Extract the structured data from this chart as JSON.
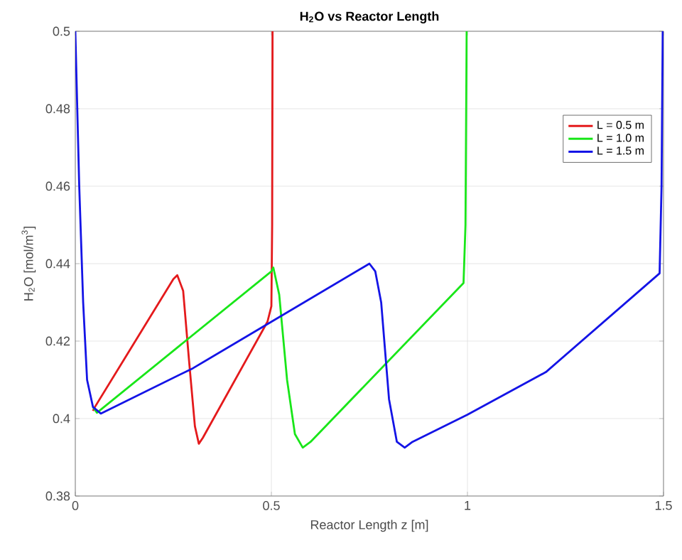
{
  "chart_data": {
    "type": "line",
    "title": "**H$_{2}$O vs Reactor Length**",
    "xlabel": "Reactor Length z [m]",
    "ylabel": "H$_{2}$O [mol/m$^{3}$]",
    "xlim": [
      0,
      1.5
    ],
    "ylim": [
      0.38,
      0.5
    ],
    "xticks": [
      0,
      0.5,
      1,
      1.5
    ],
    "yticks": [
      0.38,
      0.4,
      0.42,
      0.44,
      0.46,
      0.48,
      0.5
    ],
    "grid": true,
    "legend": "top right",
    "marker": "none",
    "line_style": "solid",
    "series": [
      {
        "name": "L = 0.5 m",
        "color": "#e41a1c",
        "x": [
          0.045,
          0.05,
          0.25,
          0.26,
          0.275,
          0.29,
          0.305,
          0.315,
          0.325,
          0.49,
          0.5,
          0.502,
          0.503
        ],
        "values": [
          0.402,
          0.403,
          0.436,
          0.437,
          0.433,
          0.415,
          0.398,
          0.3935,
          0.395,
          0.425,
          0.429,
          0.45,
          0.5
        ]
      },
      {
        "name": "L = 1.0 m",
        "color": "#19e619",
        "x": [
          0.045,
          0.055,
          0.5,
          0.505,
          0.52,
          0.54,
          0.56,
          0.58,
          0.6,
          0.99,
          0.995,
          0.998
        ],
        "values": [
          0.403,
          0.4015,
          0.438,
          0.439,
          0.432,
          0.41,
          0.396,
          0.3925,
          0.394,
          0.435,
          0.45,
          0.5
        ]
      },
      {
        "name": "L = 1.5 m",
        "color": "#1414e6",
        "x": [
          0,
          0.01,
          0.02,
          0.03,
          0.045,
          0.065,
          0.3,
          0.5,
          0.75,
          0.765,
          0.78,
          0.8,
          0.82,
          0.84,
          0.86,
          1.0,
          1.2,
          1.49,
          1.495,
          1.498
        ],
        "values": [
          0.5,
          0.46,
          0.43,
          0.41,
          0.403,
          0.4013,
          0.413,
          0.425,
          0.44,
          0.438,
          0.43,
          0.405,
          0.394,
          0.3925,
          0.394,
          0.401,
          0.412,
          0.4375,
          0.46,
          0.5
        ]
      }
    ]
  }
}
